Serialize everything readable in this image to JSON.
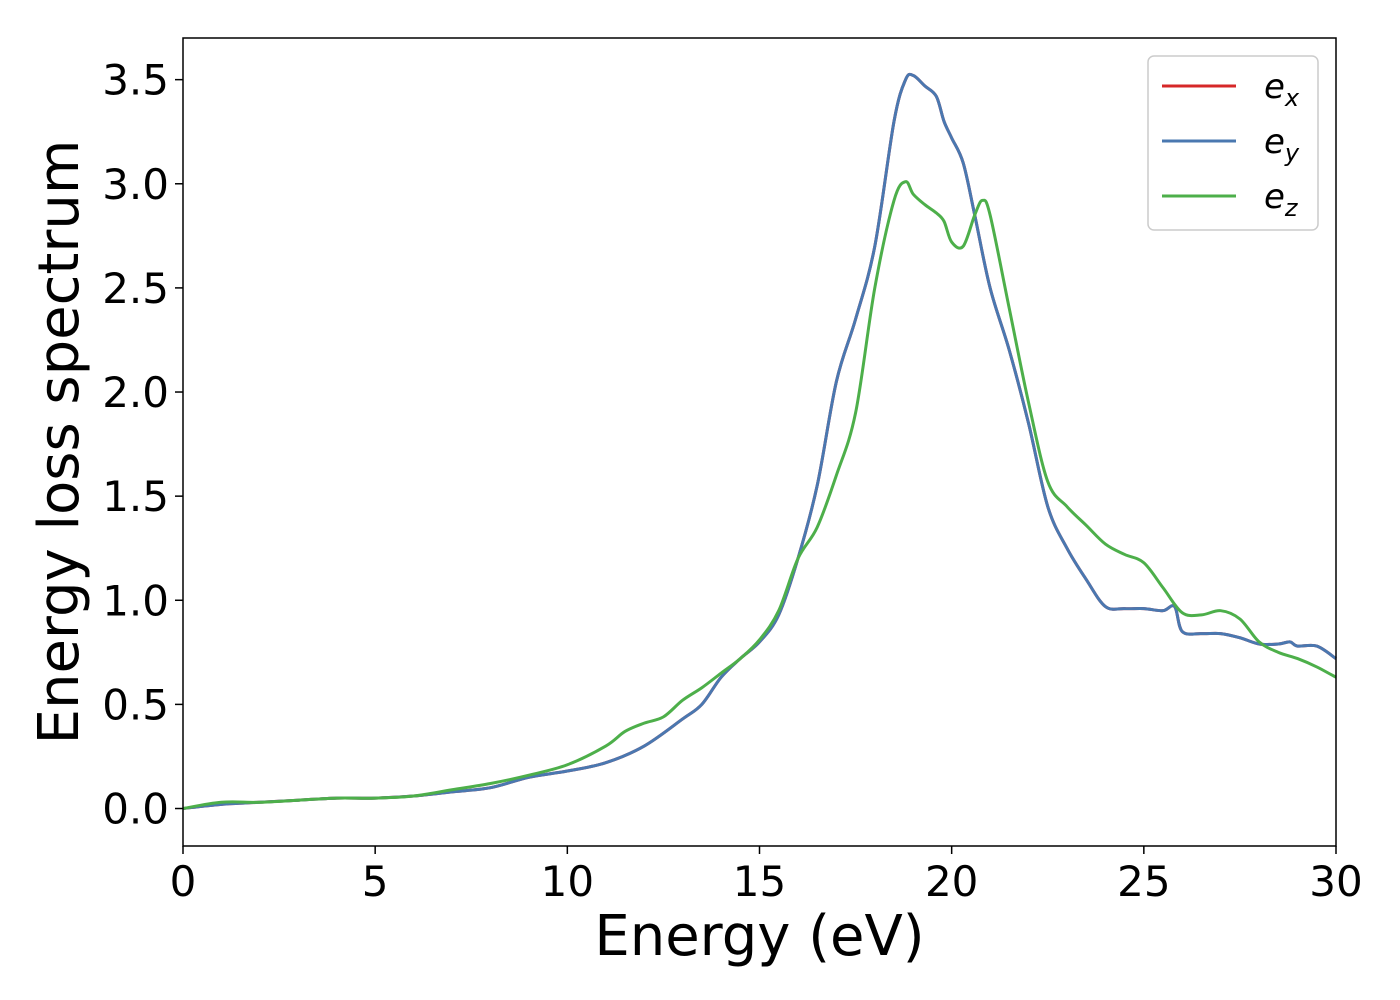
{
  "chart_data": {
    "type": "line",
    "title": "",
    "xlabel": "Energy (eV)",
    "ylabel": "Energy loss spectrum",
    "xlim": [
      0,
      30
    ],
    "ylim": [
      -0.18,
      3.7
    ],
    "xticks": [
      0,
      5,
      10,
      15,
      20,
      25,
      30
    ],
    "yticks": [
      0.0,
      0.5,
      1.0,
      1.5,
      2.0,
      2.5,
      3.0,
      3.5
    ],
    "ytick_labels": [
      "0.0",
      "0.5",
      "1.0",
      "1.5",
      "2.0",
      "2.5",
      "3.0",
      "3.5"
    ],
    "grid": false,
    "legend_position": "top-right",
    "series": [
      {
        "name": "e",
        "subscript": "x",
        "color": "#d62728",
        "x": [
          0,
          1,
          2,
          3,
          4,
          5,
          6,
          7,
          8,
          9,
          10,
          11,
          12,
          13,
          13.5,
          14,
          14.5,
          15,
          15.5,
          16,
          16.5,
          17,
          17.5,
          18,
          18.5,
          18.8,
          19,
          19.3,
          19.6,
          19.8,
          20,
          20.3,
          20.6,
          21,
          21.5,
          22,
          22.5,
          23,
          23.5,
          24,
          24.5,
          25,
          25.5,
          25.8,
          26,
          26.5,
          27,
          27.5,
          28,
          28.5,
          28.8,
          29,
          29.5,
          30
        ],
        "y": [
          0.0,
          0.02,
          0.03,
          0.04,
          0.05,
          0.05,
          0.06,
          0.08,
          0.1,
          0.15,
          0.18,
          0.22,
          0.3,
          0.43,
          0.5,
          0.63,
          0.72,
          0.8,
          0.93,
          1.2,
          1.55,
          2.05,
          2.35,
          2.7,
          3.3,
          3.5,
          3.52,
          3.47,
          3.42,
          3.3,
          3.22,
          3.1,
          2.85,
          2.5,
          2.2,
          1.85,
          1.45,
          1.25,
          1.1,
          0.97,
          0.96,
          0.96,
          0.95,
          0.97,
          0.85,
          0.84,
          0.84,
          0.82,
          0.79,
          0.79,
          0.8,
          0.78,
          0.78,
          0.72
        ]
      },
      {
        "name": "e",
        "subscript": "y",
        "color": "#4a78b0",
        "x": [
          0,
          1,
          2,
          3,
          4,
          5,
          6,
          7,
          8,
          9,
          10,
          11,
          12,
          13,
          13.5,
          14,
          14.5,
          15,
          15.5,
          16,
          16.5,
          17,
          17.5,
          18,
          18.5,
          18.8,
          19,
          19.3,
          19.6,
          19.8,
          20,
          20.3,
          20.6,
          21,
          21.5,
          22,
          22.5,
          23,
          23.5,
          24,
          24.5,
          25,
          25.5,
          25.8,
          26,
          26.5,
          27,
          27.5,
          28,
          28.5,
          28.8,
          29,
          29.5,
          30
        ],
        "y": [
          0.0,
          0.02,
          0.03,
          0.04,
          0.05,
          0.05,
          0.06,
          0.08,
          0.1,
          0.15,
          0.18,
          0.22,
          0.3,
          0.43,
          0.5,
          0.63,
          0.72,
          0.8,
          0.93,
          1.2,
          1.55,
          2.05,
          2.35,
          2.7,
          3.3,
          3.5,
          3.52,
          3.47,
          3.42,
          3.3,
          3.22,
          3.1,
          2.85,
          2.5,
          2.2,
          1.85,
          1.45,
          1.25,
          1.1,
          0.97,
          0.96,
          0.96,
          0.95,
          0.97,
          0.85,
          0.84,
          0.84,
          0.82,
          0.79,
          0.79,
          0.8,
          0.78,
          0.78,
          0.72
        ]
      },
      {
        "name": "e",
        "subscript": "z",
        "color": "#4daf4a",
        "x": [
          0,
          1,
          2,
          3,
          4,
          5,
          6,
          7,
          8,
          9,
          10,
          11,
          11.5,
          12,
          12.5,
          13,
          13.5,
          14,
          14.5,
          15,
          15.5,
          16,
          16.5,
          17,
          17.5,
          18,
          18.5,
          18.8,
          19,
          19.3,
          19.6,
          19.8,
          20,
          20.3,
          20.6,
          20.8,
          21,
          21.5,
          22,
          22.5,
          23,
          23.5,
          24,
          24.5,
          25,
          25.5,
          26,
          26.5,
          27,
          27.5,
          28,
          28.5,
          29,
          29.5,
          30
        ],
        "y": [
          0.0,
          0.03,
          0.03,
          0.04,
          0.05,
          0.05,
          0.06,
          0.09,
          0.12,
          0.16,
          0.21,
          0.3,
          0.37,
          0.41,
          0.44,
          0.52,
          0.58,
          0.65,
          0.72,
          0.81,
          0.95,
          1.2,
          1.35,
          1.6,
          1.9,
          2.5,
          2.92,
          3.01,
          2.95,
          2.9,
          2.86,
          2.82,
          2.72,
          2.7,
          2.85,
          2.92,
          2.85,
          2.4,
          1.95,
          1.57,
          1.45,
          1.36,
          1.27,
          1.22,
          1.18,
          1.06,
          0.94,
          0.93,
          0.95,
          0.91,
          0.8,
          0.75,
          0.72,
          0.68,
          0.63
        ]
      }
    ]
  }
}
